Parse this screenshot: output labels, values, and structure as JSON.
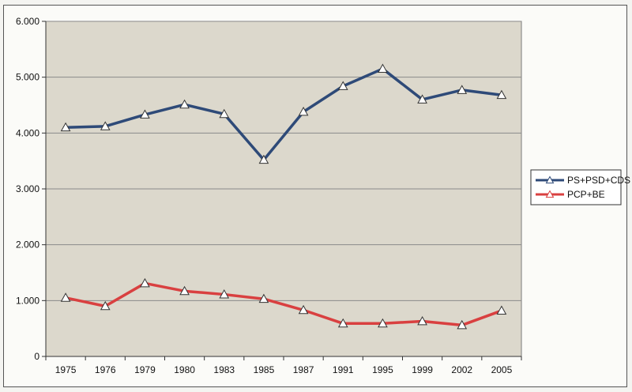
{
  "chart_data": {
    "type": "line",
    "title": "",
    "xlabel": "",
    "ylabel": "",
    "categories": [
      "1975",
      "1976",
      "1979",
      "1980",
      "1983",
      "1985",
      "1987",
      "1991",
      "1995",
      "1999",
      "2002",
      "2005"
    ],
    "ylim": [
      0,
      6000
    ],
    "yticks": [
      0,
      1000,
      2000,
      3000,
      4000,
      5000,
      6000
    ],
    "ytick_labels": [
      "0",
      "1.000",
      "2.000",
      "3.000",
      "4.000",
      "5.000",
      "6.000"
    ],
    "grid": true,
    "legend_position": "right",
    "plot_background": "#dcd8cc",
    "series": [
      {
        "name": "PS+PSD+CDS",
        "color": "#2e4a78",
        "marker": "triangle",
        "values": [
          4100,
          4120,
          4330,
          4510,
          4340,
          3520,
          4380,
          4840,
          5150,
          4600,
          4770,
          4680
        ]
      },
      {
        "name": "PCP+BE",
        "color": "#d94040",
        "marker": "triangle",
        "values": [
          1050,
          900,
          1310,
          1170,
          1110,
          1030,
          830,
          590,
          590,
          630,
          560,
          820
        ]
      }
    ]
  }
}
